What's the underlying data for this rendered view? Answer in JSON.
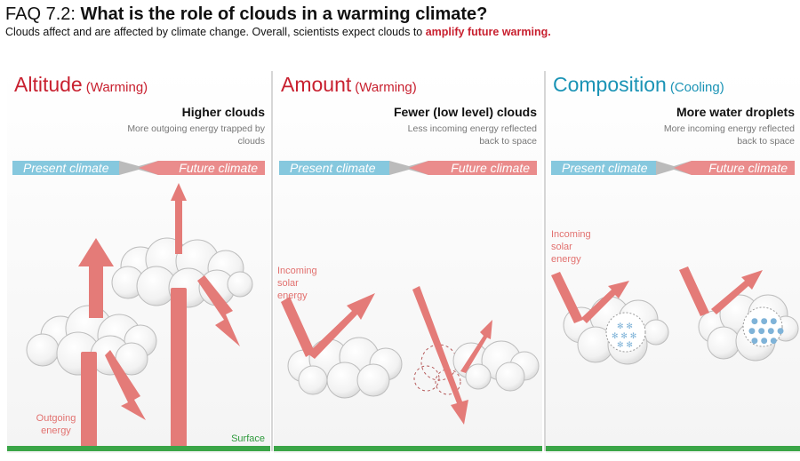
{
  "header": {
    "faq_number": "FAQ 7.2:",
    "question": "What is the role of clouds in a warming climate?",
    "subtitle_start": "Clouds affect and are affected by climate change. Overall, scientists expect clouds to ",
    "subtitle_highlight": "amplify future warming",
    "subtitle_end": "."
  },
  "panels": [
    {
      "title": "Altitude",
      "effect_type": "(Warming)",
      "effect_heading": "Higher clouds",
      "effect_description": "More outgoing energy trapped by clouds",
      "present_label": "Present climate",
      "future_label": "Future climate",
      "energy_label": "Outgoing energy",
      "surface_label": "Surface"
    },
    {
      "title": "Amount",
      "effect_type": "(Warming)",
      "effect_heading": "Fewer (low level) clouds",
      "effect_description": "Less incoming energy reflected back to space",
      "present_label": "Present climate",
      "future_label": "Future climate",
      "energy_label": "Incoming solar energy"
    },
    {
      "title": "Composition",
      "effect_type": "(Cooling)",
      "effect_heading": "More water droplets",
      "effect_description": "More incoming energy reflected back to space",
      "present_label": "Present climate",
      "future_label": "Future climate",
      "energy_label": "Incoming solar energy"
    }
  ],
  "colors": {
    "warming": "#c8202f",
    "cooling": "#1a93b5",
    "arrow": "#e47b78",
    "present_bar": "#86c8de",
    "future_bar": "#ea8c8c",
    "surface": "#3aa547"
  }
}
